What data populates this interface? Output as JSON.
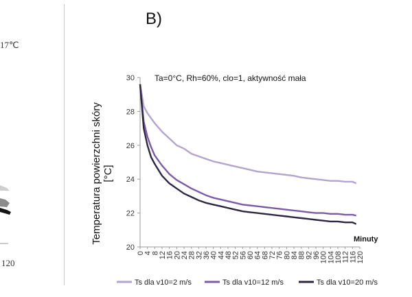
{
  "left_partial": {
    "temp_label": "17℃",
    "x_tick_label": "120"
  },
  "panel_label": "B)",
  "chart_data": {
    "type": "line",
    "annotation": "Ta=0°C,  Rh=60%, clo=1, aktywność mała",
    "xlabel": "Minuty",
    "ylabel": "Temperatura powierzchni skóry [°C]",
    "ylabel_line1": "Temperatura powierzchni skóry",
    "ylabel_line2": "[°C]",
    "xlim": [
      0,
      120
    ],
    "ylim": [
      20,
      30
    ],
    "yticks": [
      20,
      22,
      24,
      26,
      28,
      30
    ],
    "xticks": [
      0,
      4,
      8,
      12,
      16,
      20,
      24,
      28,
      32,
      36,
      40,
      44,
      48,
      52,
      56,
      60,
      64,
      68,
      72,
      76,
      80,
      84,
      88,
      92,
      96,
      100,
      104,
      108,
      112,
      116,
      120
    ],
    "x": [
      0,
      2,
      4,
      6,
      8,
      12,
      16,
      20,
      24,
      28,
      32,
      36,
      40,
      44,
      48,
      52,
      56,
      60,
      64,
      68,
      72,
      76,
      80,
      84,
      88,
      92,
      96,
      100,
      104,
      108,
      112,
      116,
      118
    ],
    "series": [
      {
        "name": "Ts dla v10=2 m/s",
        "color": "#b3a3cf",
        "values": [
          29.6,
          28.3,
          27.9,
          27.6,
          27.3,
          26.8,
          26.4,
          26.0,
          25.8,
          25.5,
          25.35,
          25.2,
          25.05,
          24.95,
          24.85,
          24.75,
          24.65,
          24.55,
          24.45,
          24.4,
          24.35,
          24.3,
          24.25,
          24.2,
          24.1,
          24.05,
          24.0,
          23.95,
          23.9,
          23.9,
          23.85,
          23.85,
          23.75
        ]
      },
      {
        "name": "Ts dla v10=12 m/s",
        "color": "#7b5ba6",
        "values": [
          29.6,
          27.4,
          26.5,
          25.9,
          25.4,
          24.8,
          24.3,
          23.95,
          23.7,
          23.45,
          23.25,
          23.05,
          22.9,
          22.8,
          22.7,
          22.6,
          22.5,
          22.45,
          22.4,
          22.35,
          22.3,
          22.25,
          22.2,
          22.15,
          22.1,
          22.05,
          22.0,
          22.0,
          21.95,
          21.95,
          21.9,
          21.9,
          21.85
        ]
      },
      {
        "name": "Ts dla v10=20 m/s",
        "color": "#2e2540",
        "values": [
          29.6,
          27.0,
          26.0,
          25.3,
          24.9,
          24.2,
          23.75,
          23.45,
          23.15,
          22.95,
          22.75,
          22.6,
          22.5,
          22.4,
          22.3,
          22.2,
          22.1,
          22.05,
          22.0,
          21.95,
          21.9,
          21.85,
          21.8,
          21.75,
          21.7,
          21.65,
          21.6,
          21.55,
          21.5,
          21.5,
          21.45,
          21.45,
          21.35
        ]
      }
    ],
    "legend_position": "bottom",
    "grid": false
  }
}
